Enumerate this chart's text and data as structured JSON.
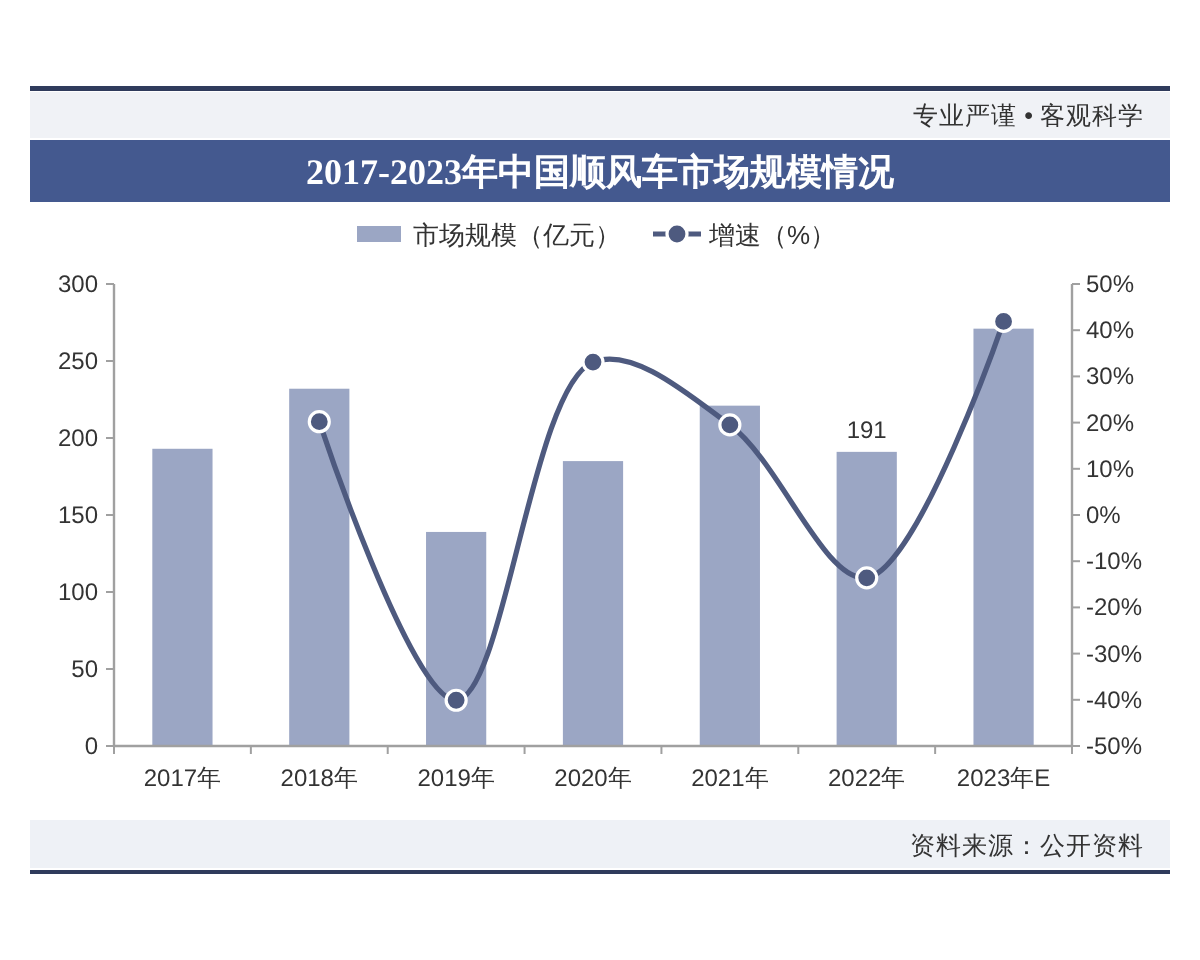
{
  "chart_data": {
    "type": "bar",
    "title": "2017-2023年中国顺风车市场规模情况",
    "categories": [
      "2017年",
      "2018年",
      "2019年",
      "2020年",
      "2021年",
      "2022年",
      "2023年E"
    ],
    "series": [
      {
        "name": "市场规模（亿元）",
        "color": "#9ba6c4",
        "values": [
          193,
          232,
          139,
          185,
          221,
          191,
          271
        ],
        "value_labels": [
          null,
          null,
          null,
          null,
          null,
          "191",
          null
        ]
      },
      {
        "name": "增速（%）",
        "type": "line",
        "axis": "y2",
        "color": "#4e5a7f",
        "values": [
          null,
          20.2,
          -40.1,
          33.1,
          19.5,
          -13.6,
          41.9
        ]
      }
    ],
    "ylim": [
      0,
      300
    ],
    "yticks": [
      0,
      50,
      100,
      150,
      200,
      250,
      300
    ],
    "y2lim": [
      -50,
      50
    ],
    "y2ticks": [
      {
        "value": -50,
        "label": "-50%"
      },
      {
        "value": -40,
        "label": "-40%"
      },
      {
        "value": -30,
        "label": "-30%"
      },
      {
        "value": -20,
        "label": "-20%"
      },
      {
        "value": -10,
        "label": "-10%"
      },
      {
        "value": 0,
        "label": "0%"
      },
      {
        "value": 10,
        "label": "10%"
      },
      {
        "value": 20,
        "label": "20%"
      },
      {
        "value": 30,
        "label": "30%"
      },
      {
        "value": 40,
        "label": "40%"
      },
      {
        "value": 50,
        "label": "50%"
      }
    ],
    "legend": "top",
    "marker": "circle",
    "annotations": [
      "专业严谨 • 客观科学",
      "资料来源：公开资料"
    ]
  }
}
